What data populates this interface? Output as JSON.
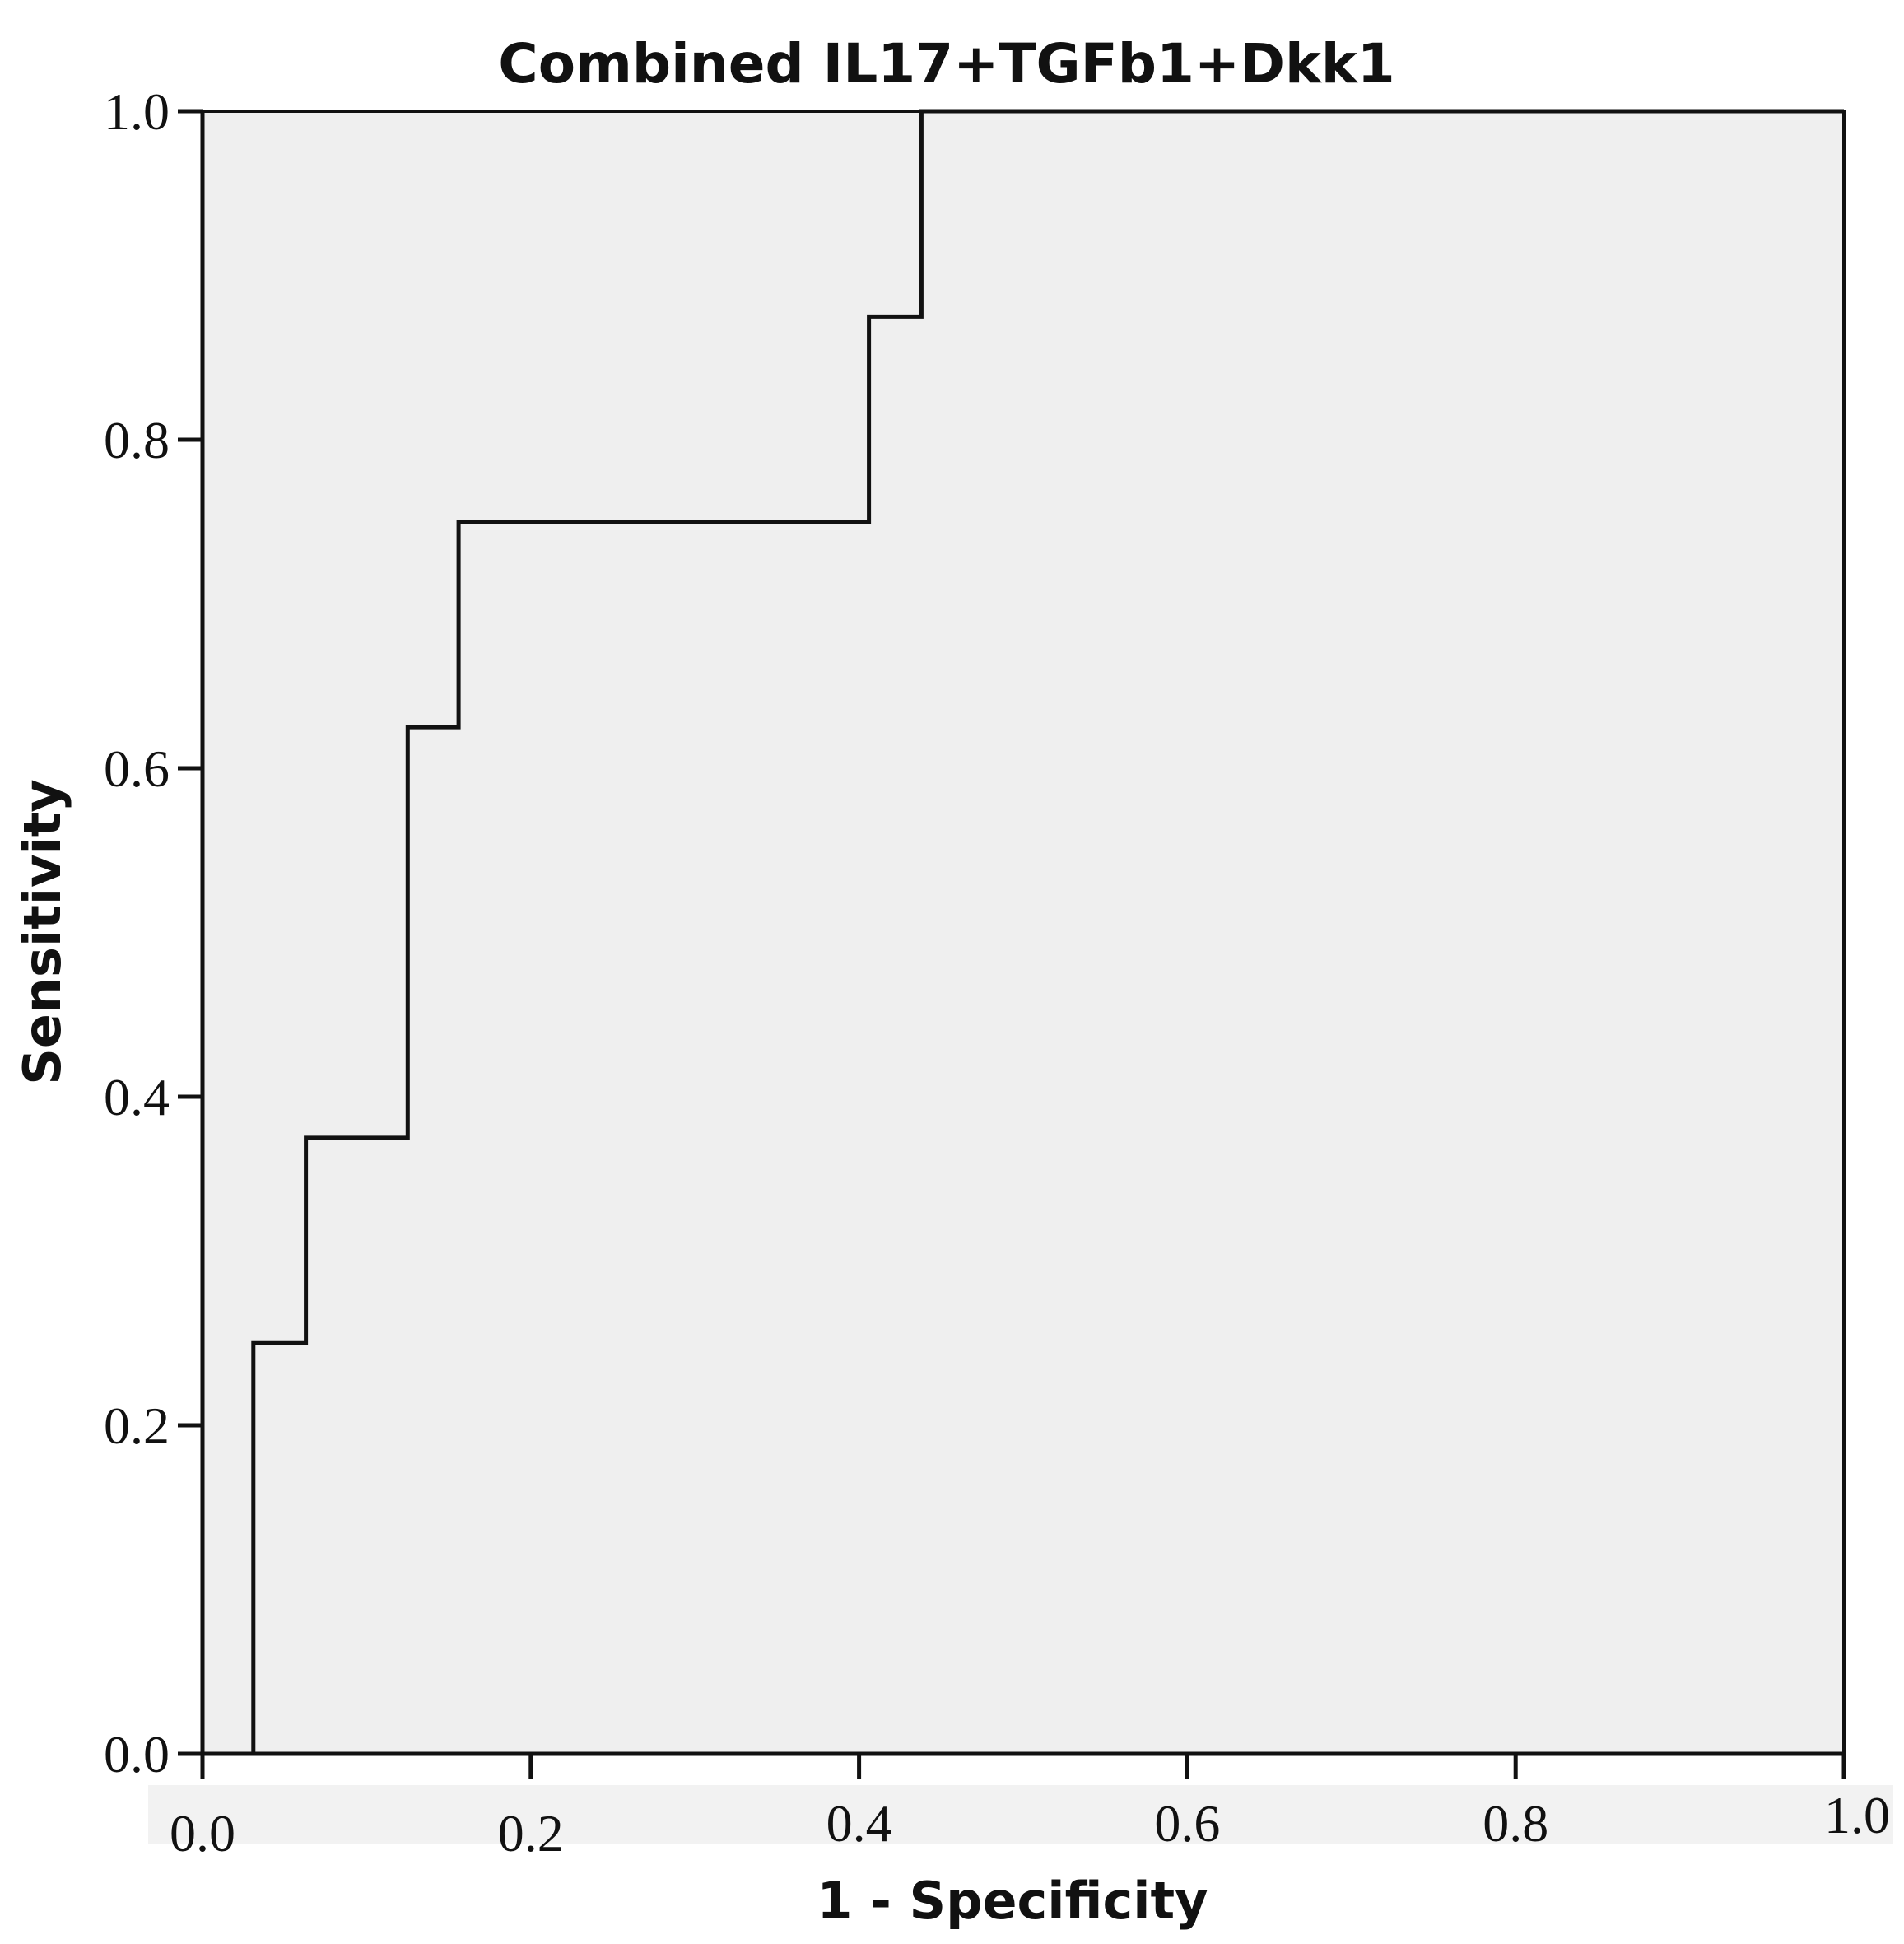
{
  "chart_data": {
    "type": "line",
    "title": "Combined IL17+TGFb1+Dkk1",
    "xlabel": "1 - Specificity",
    "ylabel": "Sensitivity",
    "xlim": [
      0,
      1
    ],
    "ylim": [
      0,
      1
    ],
    "x_ticks": [
      "0.0",
      "0.2",
      "0.4",
      "0.6",
      "0.8",
      "1.0"
    ],
    "y_ticks": [
      "0.0",
      "0.2",
      "0.4",
      "0.6",
      "0.8",
      "1.0"
    ],
    "grid": false,
    "legend": "none",
    "series": [
      {
        "x": [
          0.031,
          0.031,
          0.063,
          0.063,
          0.125,
          0.125,
          0.156,
          0.156,
          0.406,
          0.406,
          0.438,
          0.438,
          1.0
        ],
        "y": [
          0.0,
          0.25,
          0.25,
          0.375,
          0.375,
          0.625,
          0.625,
          0.75,
          0.75,
          0.875,
          0.875,
          1.0,
          1.0
        ]
      }
    ]
  }
}
